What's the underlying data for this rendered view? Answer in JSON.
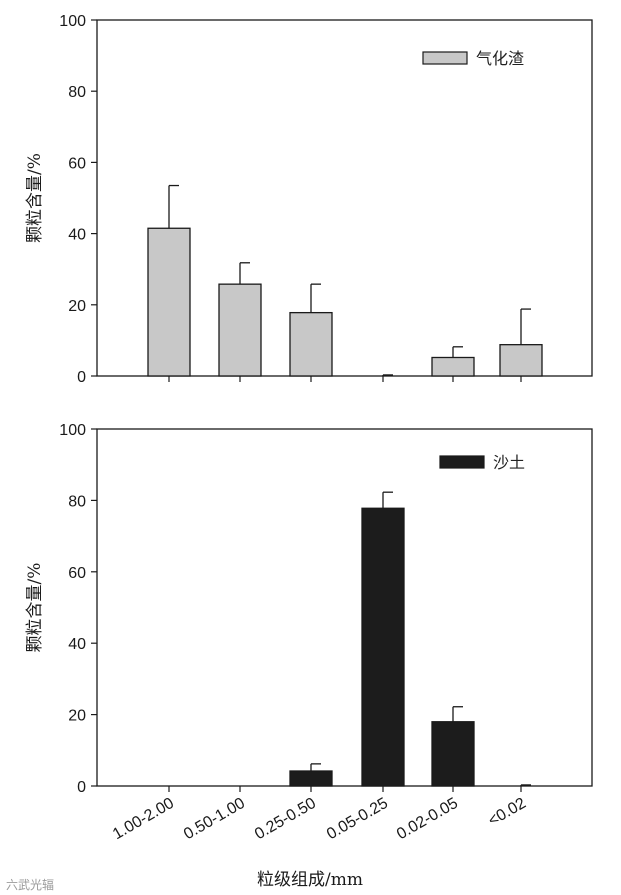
{
  "chart_data": [
    {
      "type": "bar",
      "categories": [
        "1.00-2.00",
        "0.50-1.00",
        "0.25-0.50",
        "0.05-0.25",
        "0.02-0.05",
        "<0.02"
      ],
      "series": [
        {
          "name": "气化渣",
          "values": [
            41.5,
            25.8,
            17.8,
            0,
            5.2,
            8.8
          ],
          "errors": [
            12.0,
            6.0,
            8.0,
            0.3,
            3.0,
            10.0
          ],
          "color": "#c8c8c8"
        }
      ],
      "ylabel": "颗粒含量/%",
      "ylim": [
        0,
        100
      ],
      "yticks": [
        0,
        20,
        40,
        60,
        80,
        100
      ],
      "legend_position": "top-right"
    },
    {
      "type": "bar",
      "categories": [
        "1.00-2.00",
        "0.50-1.00",
        "0.25-0.50",
        "0.05-0.25",
        "0.02-0.05",
        "<0.02"
      ],
      "series": [
        {
          "name": "沙土",
          "values": [
            0,
            0,
            4.2,
            77.8,
            18.0,
            0
          ],
          "errors": [
            0,
            0,
            2.0,
            4.5,
            4.2,
            0.3
          ],
          "color": "#1c1c1c"
        }
      ],
      "ylabel": "颗粒含量/%",
      "xlabel": "粒级组成/mm",
      "ylim": [
        0,
        100
      ],
      "yticks": [
        0,
        20,
        40,
        60,
        80,
        100
      ],
      "legend_position": "top-right"
    }
  ],
  "watermark": "六武光辐"
}
